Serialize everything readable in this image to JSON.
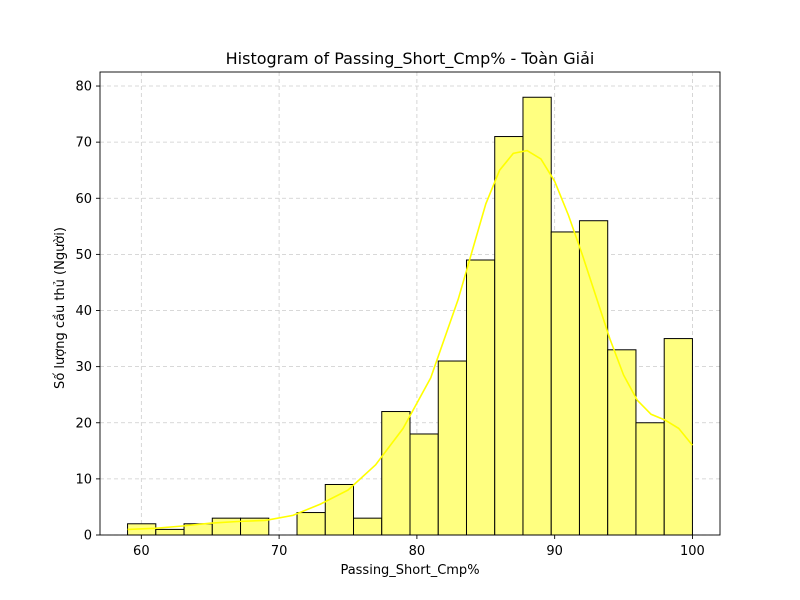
{
  "chart_data": {
    "type": "bar",
    "title": "Histogram of Passing_Short_Cmp% - Toàn Giải",
    "xlabel": "Passing_Short_Cmp%",
    "ylabel": "Số lượng cầu thủ (Người)",
    "xlim": [
      57,
      102
    ],
    "ylim": [
      0,
      82.5
    ],
    "xticks": [
      60,
      70,
      80,
      90,
      100
    ],
    "yticks": [
      0,
      10,
      20,
      30,
      40,
      50,
      60,
      70,
      80
    ],
    "grid": true,
    "bin_edges": [
      59.0,
      61.05,
      63.1,
      65.15,
      67.2,
      69.25,
      71.3,
      73.35,
      75.4,
      77.45,
      79.5,
      81.55,
      83.6,
      85.65,
      87.7,
      89.75,
      91.8,
      93.85,
      95.9,
      97.95,
      100.0
    ],
    "values": [
      2,
      1,
      2,
      3,
      3,
      0,
      4,
      9,
      3,
      22,
      18,
      31,
      49,
      71,
      78,
      54,
      56,
      33,
      20,
      35
    ],
    "kde": {
      "x": [
        59,
        61,
        63,
        65,
        67,
        69,
        71,
        73,
        75,
        77,
        79,
        81,
        83,
        85,
        86,
        87,
        88,
        89,
        90,
        91,
        92,
        93,
        94,
        95,
        96,
        97,
        98,
        99,
        100
      ],
      "y": [
        1.0,
        1.2,
        1.6,
        2.1,
        2.4,
        2.6,
        3.5,
        5.5,
        8.0,
        12.5,
        19.0,
        28.0,
        42.0,
        59.0,
        65.0,
        68.0,
        68.5,
        67.0,
        63.0,
        57.0,
        50.0,
        42.5,
        35.0,
        28.5,
        24.0,
        21.5,
        20.5,
        19.0,
        16.0
      ]
    },
    "colors": {
      "bar_fill": "#ffff80",
      "bar_edge": "#000000",
      "kde_line": "#ffff00",
      "grid": "#cccccc"
    }
  }
}
